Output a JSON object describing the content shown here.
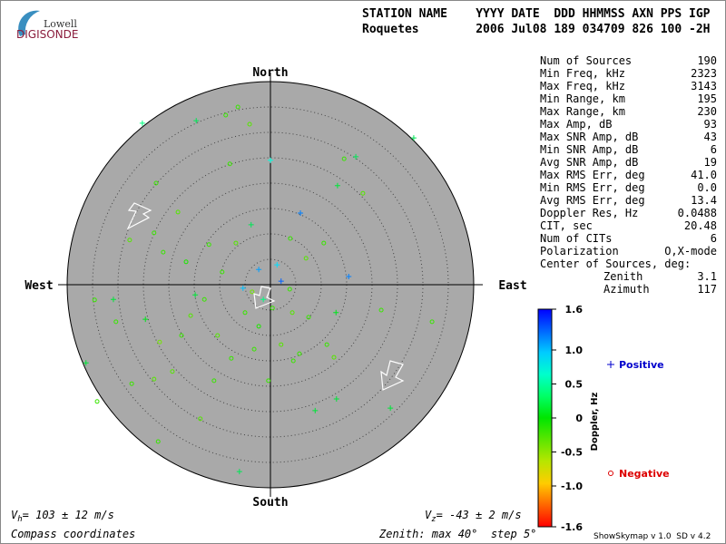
{
  "logo": {
    "top": "Lowell",
    "bottom": "DIGISONDE"
  },
  "header": {
    "line1": "STATION NAME    YYYY DATE  DDD HHMMSS AXN PPS IGP",
    "line2": "Roquetes        2006 Jul08 189 034709 826 100 -2H"
  },
  "chart_data": {
    "type": "skymap",
    "directions": {
      "north": "North",
      "south": "South",
      "east": "East",
      "west": "West"
    },
    "xlim": [
      -40,
      40
    ],
    "ylim": [
      -40,
      40
    ],
    "rings": [
      5,
      10,
      15,
      20,
      25,
      30,
      35
    ],
    "points": {
      "x": [
        -25.2,
        -14.6,
        28.2,
        0,
        5.9,
        2.1,
        -2.3,
        15.4,
        -36.3,
        -6.1,
        23.6,
        13.0,
        8.8,
        -24.6,
        -30.9,
        12.9,
        -14.8,
        -1.4,
        -5.4,
        -3.8,
        16.8,
        13.2,
        1.3,
        -6.4,
        -4.1,
        -8.8,
        14.5,
        18.2,
        -22.5,
        -8.0,
        -18.2,
        -22.9,
        -21.1,
        -27.7,
        -16.6,
        -12.1,
        -6.8,
        3.9,
        10.5,
        7.0,
        -9.5,
        -13.0,
        -15.7,
        -30.4,
        -34.6,
        -21.8,
        -17.5,
        -10.4,
        -7.7,
        -3.2,
        2.1,
        5.7,
        11.1,
        7.5,
        4.3,
        -5.0,
        -2.3,
        -22.9,
        -27.3,
        -34.1,
        -13.8,
        -22.1,
        -0.4,
        4.5,
        12.5,
        31.8,
        21.8,
        -19.3,
        -11.1,
        -3.6,
        3.8,
        0.4
      ],
      "y": [
        31.8,
        32.3,
        28.9,
        24.5,
        14.1,
        0.7,
        3.0,
        1.6,
        -15.4,
        -36.8,
        -24.3,
        -22.5,
        -24.8,
        -6.8,
        -2.9,
        -5.5,
        -2.0,
        -2.9,
        -0.7,
        11.8,
        25.2,
        19.5,
        3.9,
        35.0,
        31.6,
        33.4,
        24.8,
        18.0,
        20.0,
        23.8,
        14.3,
        10.2,
        6.4,
        8.8,
        4.5,
        7.9,
        8.2,
        9.1,
        8.2,
        5.2,
        2.5,
        -2.9,
        -6.1,
        -7.3,
        -3.0,
        -11.3,
        -10.0,
        -10.0,
        -14.5,
        -12.7,
        -11.8,
        -13.6,
        -11.8,
        -6.4,
        -5.5,
        -5.5,
        -8.2,
        -18.6,
        -19.5,
        -23.0,
        -26.4,
        -30.9,
        -18.9,
        -15.0,
        -14.3,
        -7.3,
        -5.0,
        -17.1,
        -18.9,
        -1.4,
        -0.9,
        -4.6
      ],
      "doppler": [
        0.4,
        0.3,
        0.3,
        0.7,
        1.2,
        1.3,
        1.1,
        1.2,
        0.2,
        0.3,
        0.2,
        0.2,
        0.2,
        0.1,
        0.2,
        0.1,
        0.2,
        0.4,
        1.0,
        0.3,
        0.3,
        0.2,
        0.9,
        -0.2,
        -0.3,
        -0.2,
        -0.2,
        -0.3,
        -0.2,
        -0.2,
        -0.3,
        -0.2,
        -0.2,
        -0.3,
        -0.1,
        -0.2,
        -0.3,
        -0.2,
        -0.2,
        -0.3,
        -0.2,
        -0.2,
        -0.3,
        -0.2,
        -0.2,
        -0.4,
        -0.2,
        -0.3,
        -0.2,
        -0.2,
        -0.3,
        -0.2,
        -0.2,
        -0.2,
        -0.3,
        -0.2,
        -0.1,
        -0.3,
        -0.2,
        -0.2,
        -0.3,
        -0.2,
        -0.2,
        -0.2,
        -0.3,
        -0.2,
        -0.2,
        -0.3,
        -0.2,
        -0.4,
        -0.2,
        -0.2
      ]
    },
    "colorbar": {
      "label": "Doppler, Hz",
      "lim": [
        -1.6,
        1.6
      ],
      "ticks": [
        1.6,
        {
          "value": 1,
          "label": "1.0"
        },
        0.5,
        0,
        -0.5,
        {
          "value": -1,
          "label": "-1.0"
        },
        -1.6
      ]
    },
    "legend": {
      "positive": "Positive",
      "negative": "Negative"
    }
  },
  "stats": {
    "rows": [
      {
        "label": "Num of Sources",
        "value": "190"
      },
      {
        "label": "Min Freq, kHz",
        "value": "2323"
      },
      {
        "label": "Max Freq, kHz",
        "value": "3143"
      },
      {
        "label": "Min Range, km",
        "value": "195"
      },
      {
        "label": "Max Range, km",
        "value": "230"
      },
      {
        "label": "Max Amp, dB",
        "value": "93"
      },
      {
        "label": "Max SNR Amp, dB",
        "value": "43"
      },
      {
        "label": "Min SNR Amp, dB",
        "value": "6"
      },
      {
        "label": "Avg SNR Amp, dB",
        "value": "19"
      },
      {
        "label": "Max RMS Err, deg",
        "value": "41.0"
      },
      {
        "label": "Min RMS Err, deg",
        "value": "0.0"
      },
      {
        "label": "Avg RMS Err, deg",
        "value": "13.4"
      },
      {
        "label": "Doppler Res, Hz",
        "value": "0.0488"
      },
      {
        "label": "CIT, sec",
        "value": "20.48"
      },
      {
        "label": "Num of CITs",
        "value": "6"
      },
      {
        "label": "Polarization",
        "value": "O,X-mode"
      }
    ],
    "center_title": "Center of Sources, deg:",
    "center": [
      {
        "label": "Zenith",
        "value": "3.1"
      },
      {
        "label": "Azimuth",
        "value": "117"
      }
    ]
  },
  "footer": {
    "vh": {
      "symbol": "V",
      "sub": "h",
      "text": "= 103 ± 12 m/s"
    },
    "vz": {
      "symbol": "V",
      "sub": "z",
      "text": "= -43 ± 2 m/s"
    },
    "coords": "Compass coordinates",
    "zenith": "Zenith: max 40°  step 5°",
    "version": "ShowSkymap v 1.0  SD v 4.2"
  }
}
